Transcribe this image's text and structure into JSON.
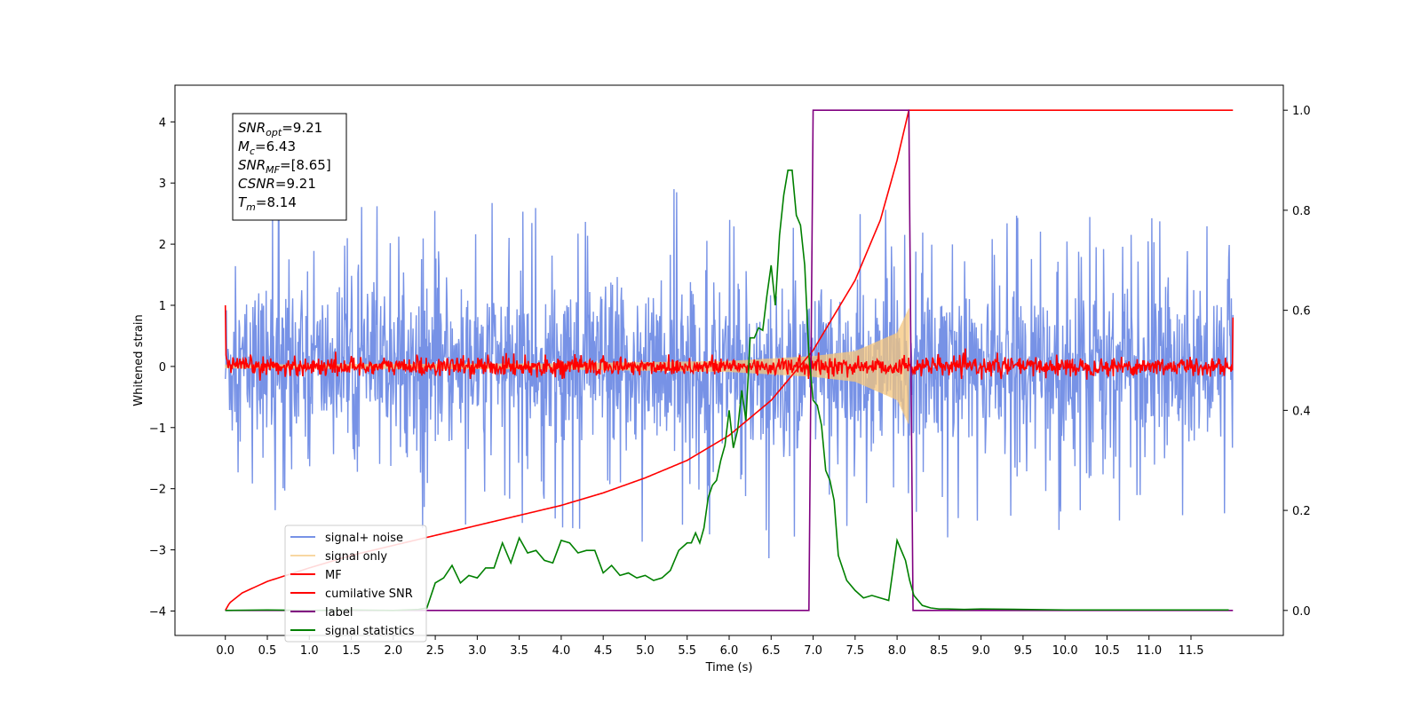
{
  "chart_data": {
    "type": "line",
    "xlabel": "Time (s)",
    "ylabel": "Whitened strain",
    "xlim": [
      -0.6,
      12.6
    ],
    "ylim": [
      -4.4,
      4.6
    ],
    "y2lim": [
      -0.05,
      1.05
    ],
    "grid": false,
    "legend_position": "lower-left",
    "x_ticks": [
      0.0,
      0.5,
      1.0,
      1.5,
      2.0,
      2.5,
      3.0,
      3.5,
      4.0,
      4.5,
      5.0,
      5.5,
      6.0,
      6.5,
      7.0,
      7.5,
      8.0,
      8.5,
      9.0,
      9.5,
      10.0,
      10.5,
      11.0,
      11.5
    ],
    "x_tick_labels": [
      "0.0",
      "0.5",
      "1.0",
      "1.5",
      "2.0",
      "2.5",
      "3.0",
      "3.5",
      "4.0",
      "4.5",
      "5.0",
      "5.5",
      "6.0",
      "6.5",
      "7.0",
      "7.5",
      "8.0",
      "8.5",
      "9.0",
      "9.5",
      "10.0",
      "10.5",
      "11.0",
      "11.5"
    ],
    "y_ticks": [
      4,
      3,
      2,
      1,
      0,
      -1,
      -2,
      -3,
      -4
    ],
    "y_tick_labels": [
      "4",
      "3",
      "2",
      "1",
      "0",
      "−1",
      "−2",
      "−3",
      "−4"
    ],
    "y2_ticks": [
      1.0,
      0.8,
      0.6,
      0.4,
      0.2,
      0.0
    ],
    "y2_tick_labels": [
      "1.0",
      "0.8",
      "0.6",
      "0.4",
      "0.2",
      "0.0"
    ],
    "annotation": {
      "lines": [
        {
          "sym": "SNR",
          "sub": "opt",
          "val": "=9.21"
        },
        {
          "sym": "M",
          "sub": "c",
          "val": "=6.43"
        },
        {
          "sym": "SNR",
          "sub": "MF",
          "val": "=[8.65]"
        },
        {
          "sym": "CSNR",
          "sub": "",
          "val": "=9.21"
        },
        {
          "sym": "T",
          "sub": "m",
          "val": "=8.14"
        }
      ]
    },
    "series": [
      {
        "name": "signal+ noise",
        "axis": "left",
        "color": "#7792e6",
        "kind": "noise",
        "x_range": [
          0.0,
          12.0
        ],
        "envelope_positive": [
          [
            0.0,
            2.6
          ],
          [
            4.0,
            2.9
          ],
          [
            6.6,
            2.9
          ],
          [
            8.1,
            2.5
          ],
          [
            12.0,
            2.4
          ]
        ],
        "envelope_negative": [
          [
            0.0,
            -2.5
          ],
          [
            4.0,
            -2.9
          ],
          [
            6.6,
            -3.2
          ],
          [
            8.1,
            -2.9
          ],
          [
            12.0,
            -2.5
          ]
        ],
        "core_amplitude": 1.2
      },
      {
        "name": "signal only",
        "axis": "left",
        "color": "#f5c67b",
        "kind": "chirp",
        "x_range": [
          0.0,
          8.14
        ],
        "envelope": [
          [
            0.0,
            0.03
          ],
          [
            4.0,
            0.05
          ],
          [
            6.0,
            0.09
          ],
          [
            7.0,
            0.17
          ],
          [
            7.5,
            0.25
          ],
          [
            8.0,
            0.55
          ],
          [
            8.14,
            0.95
          ]
        ]
      },
      {
        "name": "MF",
        "axis": "left",
        "color": "#ff0000",
        "kind": "noise",
        "x_range": [
          0.0,
          12.0
        ],
        "amplitude": 0.14,
        "start_value": 1.0,
        "end_value": 0.8
      },
      {
        "name": "cumilative SNR",
        "axis": "right",
        "color": "#ff0000",
        "kind": "line",
        "x": [
          0.0,
          0.05,
          0.2,
          0.5,
          1.0,
          1.5,
          2.0,
          2.5,
          3.0,
          3.5,
          4.0,
          4.5,
          5.0,
          5.5,
          6.0,
          6.5,
          7.0,
          7.5,
          7.8,
          8.0,
          8.14,
          12.0
        ],
        "y": [
          0.0,
          0.015,
          0.035,
          0.058,
          0.085,
          0.11,
          0.13,
          0.15,
          0.17,
          0.19,
          0.21,
          0.235,
          0.265,
          0.3,
          0.35,
          0.42,
          0.52,
          0.66,
          0.78,
          0.9,
          1.0,
          1.0
        ]
      },
      {
        "name": "label",
        "axis": "right",
        "color": "#800080",
        "kind": "line",
        "x": [
          0.0,
          6.95,
          7.0,
          8.14,
          8.19,
          12.0
        ],
        "y": [
          0.0,
          0.0,
          1.0,
          1.0,
          0.0,
          0.0
        ]
      },
      {
        "name": "signal statistics",
        "axis": "right",
        "color": "#008000",
        "kind": "line",
        "x": [
          0.0,
          0.5,
          1.0,
          1.5,
          2.0,
          2.3,
          2.4,
          2.5,
          2.6,
          2.7,
          2.8,
          2.9,
          3.0,
          3.1,
          3.2,
          3.3,
          3.4,
          3.5,
          3.6,
          3.7,
          3.8,
          3.9,
          4.0,
          4.1,
          4.2,
          4.3,
          4.4,
          4.5,
          4.6,
          4.7,
          4.8,
          4.9,
          5.0,
          5.1,
          5.2,
          5.3,
          5.4,
          5.5,
          5.55,
          5.6,
          5.65,
          5.7,
          5.75,
          5.8,
          5.85,
          5.9,
          5.95,
          6.0,
          6.05,
          6.1,
          6.15,
          6.2,
          6.25,
          6.3,
          6.35,
          6.4,
          6.45,
          6.5,
          6.55,
          6.6,
          6.65,
          6.7,
          6.75,
          6.8,
          6.85,
          6.9,
          6.95,
          7.0,
          7.05,
          7.1,
          7.15,
          7.2,
          7.25,
          7.3,
          7.4,
          7.5,
          7.6,
          7.7,
          7.8,
          7.9,
          8.0,
          8.05,
          8.1,
          8.15,
          8.2,
          8.3,
          8.4,
          8.5,
          8.6,
          8.8,
          9.0,
          9.5,
          10.0,
          10.5,
          11.0,
          11.5,
          11.95
        ],
        "y": [
          0.0,
          0.001,
          0.0,
          0.001,
          0.0,
          0.002,
          0.005,
          0.055,
          0.065,
          0.09,
          0.055,
          0.07,
          0.065,
          0.085,
          0.085,
          0.135,
          0.095,
          0.145,
          0.115,
          0.12,
          0.1,
          0.095,
          0.14,
          0.135,
          0.115,
          0.12,
          0.12,
          0.075,
          0.09,
          0.07,
          0.075,
          0.065,
          0.07,
          0.06,
          0.065,
          0.08,
          0.12,
          0.135,
          0.135,
          0.155,
          0.135,
          0.165,
          0.225,
          0.25,
          0.26,
          0.3,
          0.33,
          0.4,
          0.325,
          0.36,
          0.44,
          0.38,
          0.545,
          0.545,
          0.565,
          0.56,
          0.63,
          0.69,
          0.61,
          0.75,
          0.83,
          0.88,
          0.88,
          0.79,
          0.77,
          0.69,
          0.51,
          0.42,
          0.41,
          0.37,
          0.28,
          0.26,
          0.22,
          0.11,
          0.06,
          0.04,
          0.025,
          0.03,
          0.025,
          0.02,
          0.14,
          0.12,
          0.1,
          0.06,
          0.03,
          0.01,
          0.005,
          0.003,
          0.003,
          0.002,
          0.003,
          0.002,
          0.001,
          0.001,
          0.001,
          0.001,
          0.001
        ]
      }
    ]
  }
}
